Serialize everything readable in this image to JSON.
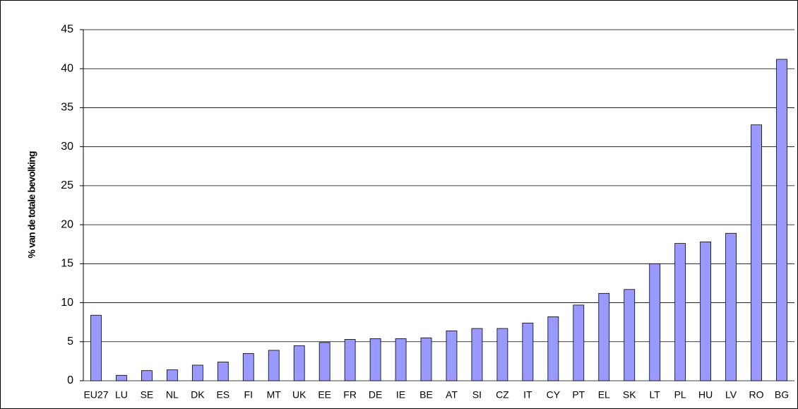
{
  "chart_data": {
    "type": "bar",
    "y_label": "% van de totale bevolking",
    "categories": [
      "EU27",
      "LU",
      "SE",
      "NL",
      "DK",
      "ES",
      "FI",
      "MT",
      "UK",
      "EE",
      "FR",
      "DE",
      "IE",
      "BE",
      "AT",
      "SI",
      "CZ",
      "IT",
      "CY",
      "PT",
      "EL",
      "SK",
      "LT",
      "PL",
      "HU",
      "LV",
      "RO",
      "BG"
    ],
    "values": [
      8.4,
      0.7,
      1.3,
      1.4,
      2.0,
      2.4,
      3.5,
      3.9,
      4.5,
      4.9,
      5.3,
      5.4,
      5.4,
      5.5,
      6.4,
      6.7,
      6.7,
      7.4,
      8.2,
      9.7,
      11.2,
      11.7,
      15.0,
      17.6,
      17.8,
      18.9,
      32.8,
      41.2
    ],
    "color": "#9999ff",
    "ylim": [
      0,
      45
    ],
    "yticks": [
      0,
      5,
      10,
      15,
      20,
      25,
      30,
      35,
      40,
      45
    ],
    "grid": true
  }
}
